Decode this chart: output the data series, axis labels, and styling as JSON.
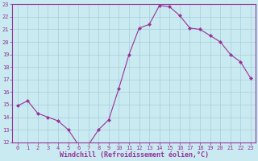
{
  "x": [
    0,
    1,
    2,
    3,
    4,
    5,
    6,
    7,
    8,
    9,
    10,
    11,
    12,
    13,
    14,
    15,
    16,
    17,
    18,
    19,
    20,
    21,
    22,
    23
  ],
  "y": [
    14.9,
    15.3,
    14.3,
    14.0,
    13.7,
    13.0,
    11.8,
    11.8,
    13.0,
    13.8,
    16.3,
    19.0,
    21.1,
    21.4,
    22.9,
    22.8,
    22.1,
    21.1,
    21.0,
    20.5,
    20.0,
    19.0,
    18.4,
    17.1
  ],
  "line_color": "#993399",
  "marker": "D",
  "marker_size": 2.0,
  "bg_color": "#c8eaf0",
  "grid_color": "#aaccdd",
  "xlabel": "Windchill (Refroidissement éolien,°C)",
  "xlabel_color": "#993399",
  "tick_color": "#993399",
  "spine_color": "#993399",
  "ylim": [
    12,
    23
  ],
  "xlim": [
    -0.5,
    23.5
  ],
  "yticks": [
    12,
    13,
    14,
    15,
    16,
    17,
    18,
    19,
    20,
    21,
    22,
    23
  ],
  "xticks": [
    0,
    1,
    2,
    3,
    4,
    5,
    6,
    7,
    8,
    9,
    10,
    11,
    12,
    13,
    14,
    15,
    16,
    17,
    18,
    19,
    20,
    21,
    22,
    23
  ],
  "tick_fontsize": 5.0,
  "xlabel_fontsize": 6.0,
  "linewidth": 0.8
}
